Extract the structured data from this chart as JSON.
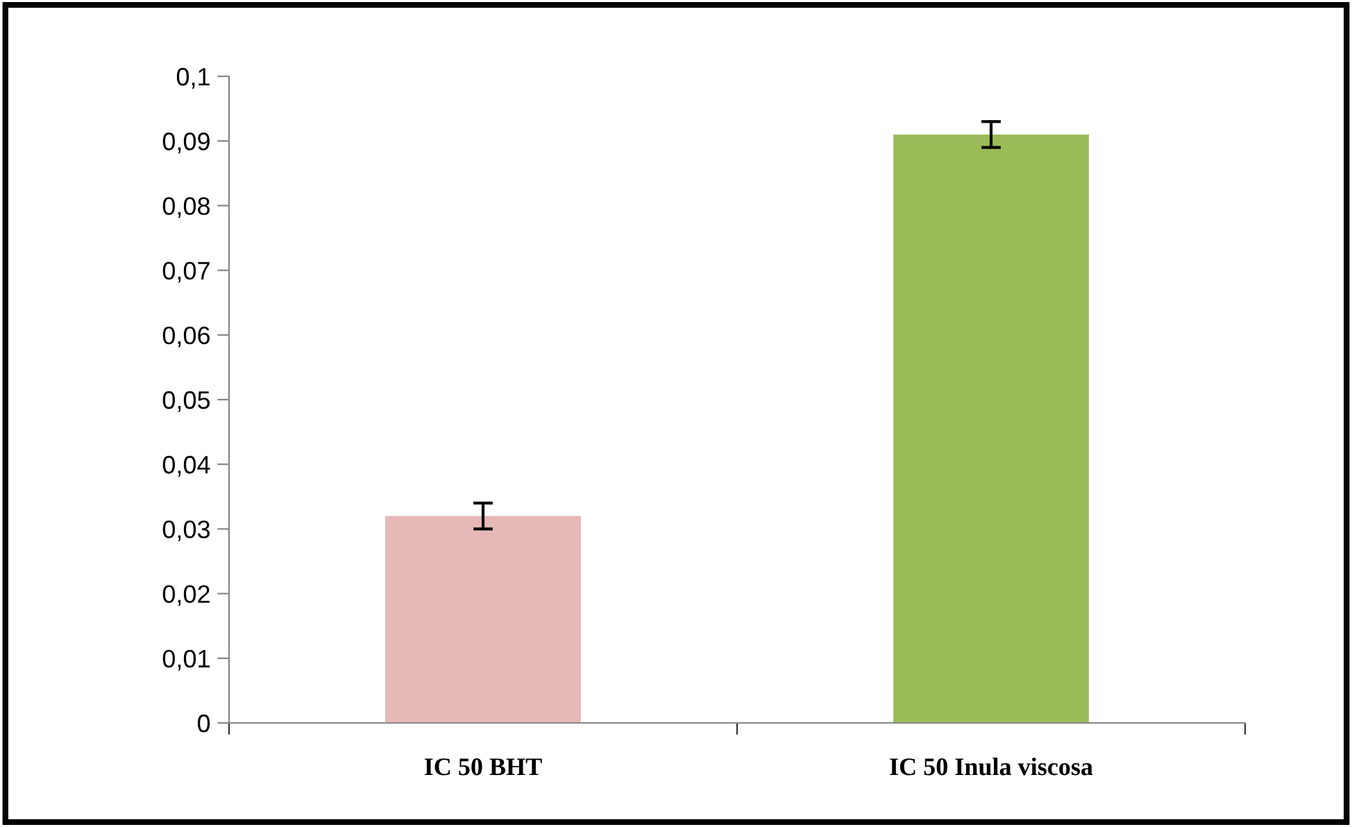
{
  "chart_data": {
    "type": "bar",
    "categories": [
      "IC 50 BHT",
      "IC 50 Inula viscosa"
    ],
    "values": [
      0.032,
      0.091
    ],
    "errors": [
      0.002,
      0.002
    ],
    "colors": [
      "#e6b8b7",
      "#9bbb59"
    ],
    "ylim": [
      0,
      0.1
    ],
    "yticks": [
      {
        "value": 0,
        "label": "0"
      },
      {
        "value": 0.01,
        "label": "0,01"
      },
      {
        "value": 0.02,
        "label": "0,02"
      },
      {
        "value": 0.03,
        "label": "0,03"
      },
      {
        "value": 0.04,
        "label": "0,04"
      },
      {
        "value": 0.05,
        "label": "0,05"
      },
      {
        "value": 0.06,
        "label": "0,06"
      },
      {
        "value": 0.07,
        "label": "0,07"
      },
      {
        "value": 0.08,
        "label": "0,08"
      },
      {
        "value": 0.09,
        "label": "0,09"
      },
      {
        "value": 0.1,
        "label": "0,1"
      }
    ],
    "grid": false,
    "legend": false
  }
}
